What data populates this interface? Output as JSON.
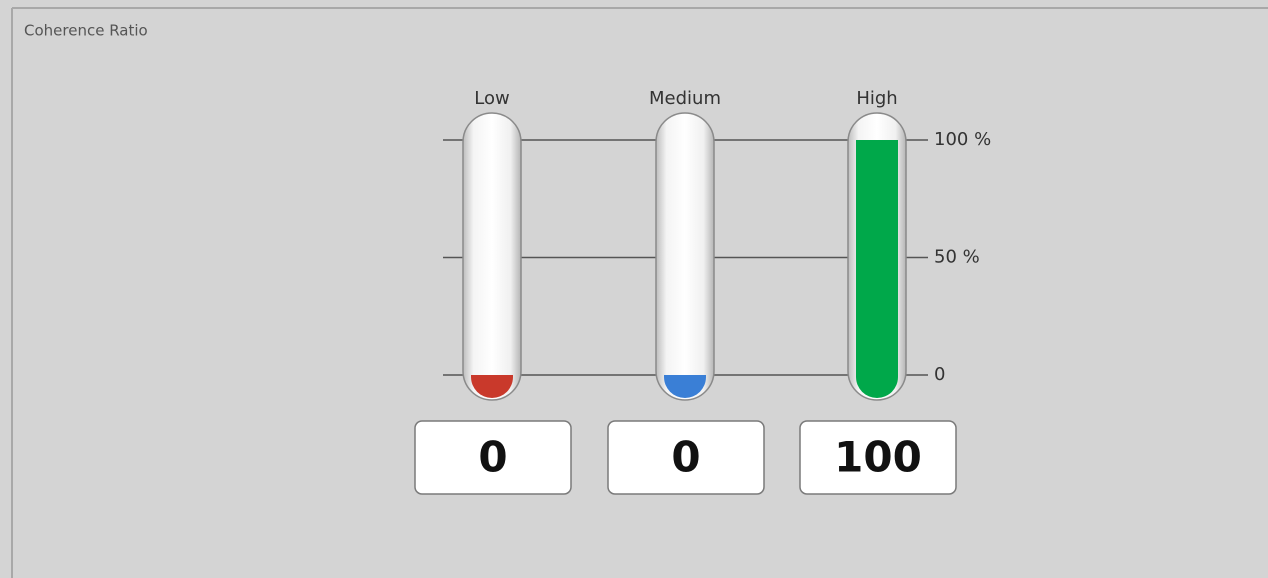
{
  "chart_data": {
    "type": "bar",
    "title": "Coherence Ratio",
    "categories": [
      "Low",
      "Medium",
      "High"
    ],
    "values": [
      0,
      0,
      100
    ],
    "colors": [
      "#c9392b",
      "#3a7fd6",
      "#00a84a"
    ],
    "ylim": [
      0,
      100
    ],
    "yticks": [
      0,
      {
        "value": 50,
        "label": "50 %"
      },
      {
        "value": 100,
        "label": "100 %"
      }
    ],
    "grid": true
  }
}
